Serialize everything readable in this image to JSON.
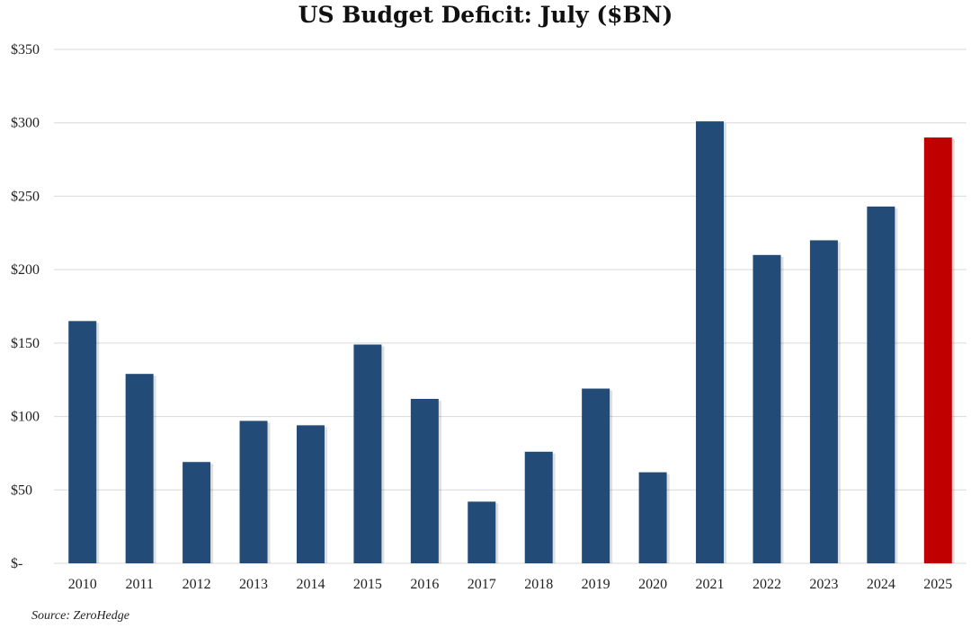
{
  "chart_data": {
    "type": "bar",
    "title": "US Budget Deficit: July ($BN)",
    "source": "Source: ZeroHedge",
    "categories": [
      "2010",
      "2011",
      "2012",
      "2013",
      "2014",
      "2015",
      "2016",
      "2017",
      "2018",
      "2019",
      "2020",
      "2021",
      "2022",
      "2023",
      "2024",
      "2025"
    ],
    "values": [
      165,
      129,
      69,
      97,
      94,
      149,
      112,
      42,
      76,
      119,
      62,
      301,
      210,
      220,
      243,
      290
    ],
    "ylim": [
      0,
      350
    ],
    "yticks": [
      0,
      50,
      100,
      150,
      200,
      250,
      300,
      350
    ],
    "ytick_labels": [
      "$-",
      "$50",
      "$100",
      "$150",
      "$200",
      "$250",
      "$300",
      "$350"
    ],
    "xlabel": "",
    "ylabel": "",
    "grid": true,
    "colors": {
      "bar": "#234b78",
      "highlight": "#c00000",
      "grid": "#d9d9d9"
    },
    "highlight_category": "2025"
  }
}
